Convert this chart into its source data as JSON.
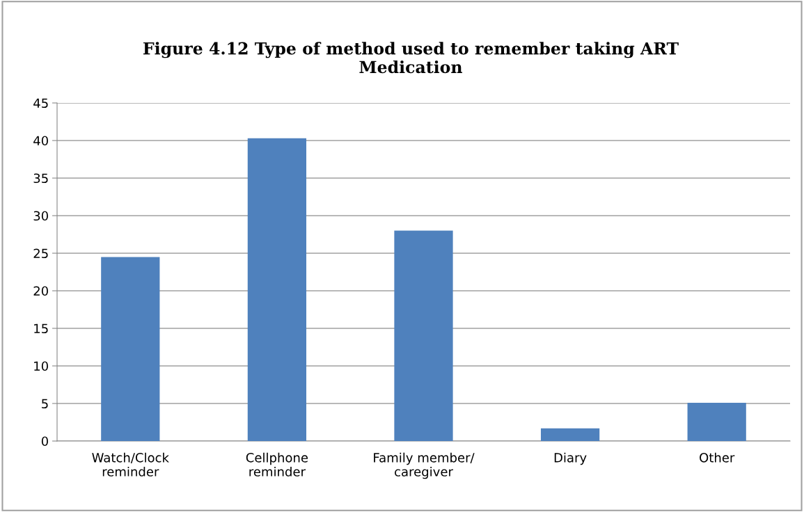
{
  "chart_data": {
    "type": "bar",
    "title": "Figure 4.12 Type of method used to remember taking ART\nMedication",
    "categories": [
      "Watch/Clock\nreminder",
      "Cellphone\nreminder",
      "Family member/\ncaregiver",
      "Diary",
      "Other"
    ],
    "values": [
      24.5,
      40.3,
      28.0,
      1.7,
      5.1
    ],
    "color": "#4f81bd",
    "ylim": [
      0,
      45
    ],
    "yticks": [
      0,
      5,
      10,
      15,
      20,
      25,
      30,
      35,
      40,
      45
    ],
    "grid": "y",
    "legend": false
  }
}
